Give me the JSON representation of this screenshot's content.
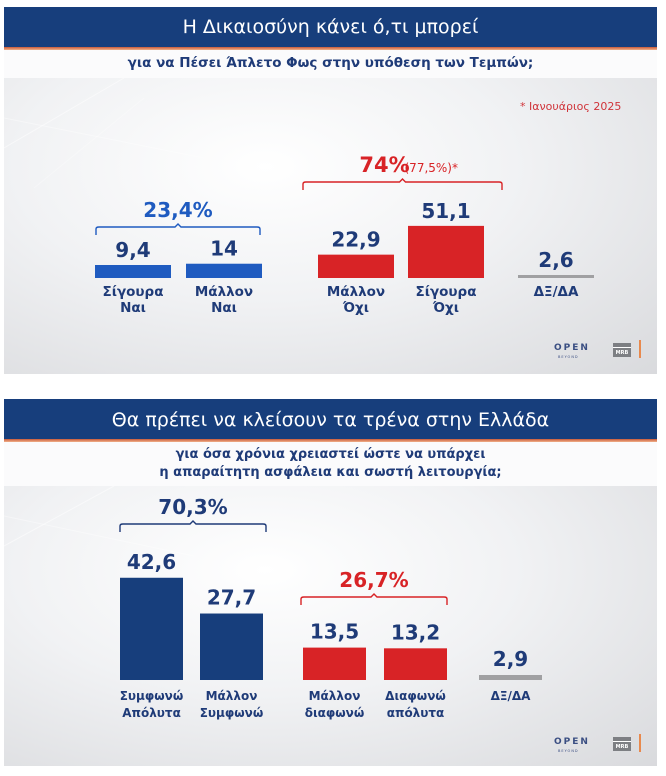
{
  "colors": {
    "header_bg": "#173e7c",
    "navy": "#1f3b78",
    "bright_blue": "#1f5bc0",
    "dark_blue_bar": "#173e7c",
    "red": "#d82326",
    "grey": "#a0a0a2",
    "note_red": "#d0343a"
  },
  "panels": [
    {
      "title": "Η Δικαιοσύνη κάνει ό,τι μπορεί",
      "subtitle_lines": [
        "για να Πέσει Άπλετο Φως στην υπόθεση των Τεμπών;"
      ],
      "note": "* Ιανουάριος 2025",
      "logo": {
        "brand": "OPEN",
        "tagline": "BEYOND",
        "partner": "MRB"
      }
    },
    {
      "title": "Θα πρέπει να κλείσουν τα τρένα στην Ελλάδα",
      "subtitle_lines": [
        "για όσα χρόνια χρειαστεί ώστε να υπάρχει",
        "η απαραίτητη ασφάλεια και σωστή λειτουργία;"
      ],
      "logo": {
        "brand": "OPEN",
        "tagline": "BEYOND",
        "partner": "MRB"
      }
    }
  ],
  "chart_data": [
    {
      "type": "bar",
      "title": "Η Δικαιοσύνη κάνει ό,τι μπορεί για να Πέσει Άπλετο Φως στην υπόθεση των Τεμπών;",
      "unit": "%",
      "categories": [
        {
          "label": [
            "Σίγουρα",
            "Ναι"
          ],
          "value": 9.4,
          "value_label": "9,4",
          "color": "bright_blue"
        },
        {
          "label": [
            "Μάλλον",
            "Ναι"
          ],
          "value": 14,
          "value_label": "14",
          "color": "bright_blue"
        },
        {
          "label": [
            "Μάλλον",
            "Όχι"
          ],
          "value": 22.9,
          "value_label": "22,9",
          "color": "red"
        },
        {
          "label": [
            "Σίγουρα",
            "Όχι"
          ],
          "value": 51.1,
          "value_label": "51,1",
          "color": "red"
        },
        {
          "label": [
            "ΔΞ/ΔΑ"
          ],
          "value": 2.6,
          "value_label": "2,6",
          "color": "grey"
        }
      ],
      "groups": [
        {
          "name": "Ναι total",
          "members": [
            0,
            1
          ],
          "total_label": "23,4%",
          "color": "bright_blue"
        },
        {
          "name": "Όχι total",
          "members": [
            2,
            3
          ],
          "total_label": "74%",
          "comparison_label": "(77,5%)*",
          "color": "red"
        }
      ],
      "annotation": "* Ιανουάριος 2025",
      "xlabel": "",
      "ylabel": "",
      "grid": false,
      "legend": "none"
    },
    {
      "type": "bar",
      "title": "Θα πρέπει να κλείσουν τα τρένα στην Ελλάδα για όσα χρόνια χρειαστεί ώστε να υπάρχει η απαραίτητη ασφάλεια και σωστή λειτουργία;",
      "unit": "%",
      "categories": [
        {
          "label": [
            "Συμφωνώ",
            "Απόλυτα"
          ],
          "value": 42.6,
          "value_label": "42,6",
          "color": "dark_blue_bar"
        },
        {
          "label": [
            "Μάλλον",
            "Συμφωνώ"
          ],
          "value": 27.7,
          "value_label": "27,7",
          "color": "dark_blue_bar"
        },
        {
          "label": [
            "Μάλλον",
            "διαφωνώ"
          ],
          "value": 13.5,
          "value_label": "13,5",
          "color": "red"
        },
        {
          "label": [
            "Διαφωνώ",
            "απόλυτα"
          ],
          "value": 13.2,
          "value_label": "13,2",
          "color": "red"
        },
        {
          "label": [
            "ΔΞ/ΔΑ"
          ],
          "value": 2.9,
          "value_label": "2,9",
          "color": "grey"
        }
      ],
      "groups": [
        {
          "name": "Συμφωνώ total",
          "members": [
            0,
            1
          ],
          "total_label": "70,3%",
          "color": "navy"
        },
        {
          "name": "Διαφωνώ total",
          "members": [
            2,
            3
          ],
          "total_label": "26,7%",
          "color": "red"
        }
      ],
      "xlabel": "",
      "ylabel": "",
      "grid": false,
      "legend": "none"
    }
  ]
}
